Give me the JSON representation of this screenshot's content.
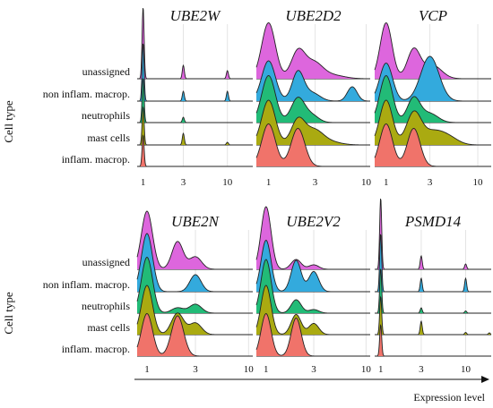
{
  "chart_data": {
    "type": "ridgeline",
    "rows": [
      "unassigned",
      "non inflam. macrop.",
      "neutrophils",
      "mast cells",
      "inflam. macrop."
    ],
    "row_colors": [
      "#dd66dd",
      "#33aadd",
      "#22bb77",
      "#aaaa11",
      "#f0736a"
    ],
    "ylabel": "Cell type",
    "xlabel": "Expression level",
    "panels": [
      {
        "title": "UBE2W",
        "x_ticks": [
          {
            "label": "1",
            "value": 1
          },
          {
            "label": "3",
            "value": 3
          },
          {
            "label": "10",
            "value": 10
          }
        ],
        "x_range": [
          0.85,
          20
        ],
        "series": [
          {
            "row": "unassigned",
            "peaks": [
              {
                "x": 1.0,
                "h": 1.6,
                "w": 0.012
              },
              {
                "x": 3.0,
                "h": 0.3,
                "w": 0.012
              },
              {
                "x": 10.0,
                "h": 0.18,
                "w": 0.012
              }
            ]
          },
          {
            "row": "non inflam. macrop.",
            "peaks": [
              {
                "x": 1.0,
                "h": 1.3,
                "w": 0.012
              },
              {
                "x": 3.0,
                "h": 0.22,
                "w": 0.012
              },
              {
                "x": 10.0,
                "h": 0.22,
                "w": 0.012
              }
            ]
          },
          {
            "row": "neutrophils",
            "peaks": [
              {
                "x": 1.0,
                "h": 1.0,
                "w": 0.012
              },
              {
                "x": 3.0,
                "h": 0.12,
                "w": 0.012
              }
            ]
          },
          {
            "row": "mast cells",
            "peaks": [
              {
                "x": 1.0,
                "h": 0.85,
                "w": 0.012
              },
              {
                "x": 3.0,
                "h": 0.26,
                "w": 0.012
              },
              {
                "x": 10.0,
                "h": 0.06,
                "w": 0.012
              }
            ]
          },
          {
            "row": "inflam. macrop.",
            "peaks": [
              {
                "x": 1.0,
                "h": 0.7,
                "w": 0.012
              }
            ]
          }
        ]
      },
      {
        "title": "UBE2D2",
        "x_ticks": [
          {
            "label": "1",
            "value": 1
          },
          {
            "label": "3",
            "value": 3
          },
          {
            "label": "10",
            "value": 10
          }
        ],
        "x_range": [
          0.75,
          11
        ],
        "series": [
          {
            "row": "unassigned",
            "peaks": [
              {
                "x": 1.0,
                "h": 1.25,
                "w": 0.07
              },
              {
                "x": 2.0,
                "h": 0.6,
                "w": 0.07
              },
              {
                "x": 2.9,
                "h": 0.35,
                "w": 0.09
              },
              {
                "x": 4.5,
                "h": 0.08,
                "w": 0.12
              }
            ]
          },
          {
            "row": "non inflam. macrop.",
            "peaks": [
              {
                "x": 1.0,
                "h": 0.9,
                "w": 0.07
              },
              {
                "x": 2.0,
                "h": 0.65,
                "w": 0.06
              },
              {
                "x": 2.8,
                "h": 0.18,
                "w": 0.08
              },
              {
                "x": 7.2,
                "h": 0.32,
                "w": 0.05
              }
            ]
          },
          {
            "row": "neutrophils",
            "peaks": [
              {
                "x": 1.0,
                "h": 1.05,
                "w": 0.07
              },
              {
                "x": 2.0,
                "h": 0.55,
                "w": 0.07
              },
              {
                "x": 2.8,
                "h": 0.15,
                "w": 0.07
              }
            ]
          },
          {
            "row": "mast cells",
            "peaks": [
              {
                "x": 1.0,
                "h": 1.0,
                "w": 0.07
              },
              {
                "x": 2.0,
                "h": 0.55,
                "w": 0.07
              },
              {
                "x": 2.9,
                "h": 0.3,
                "w": 0.09
              },
              {
                "x": 4.0,
                "h": 0.08,
                "w": 0.12
              }
            ]
          },
          {
            "row": "inflam. macrop.",
            "peaks": [
              {
                "x": 1.0,
                "h": 0.95,
                "w": 0.07
              },
              {
                "x": 2.0,
                "h": 0.85,
                "w": 0.07
              }
            ]
          }
        ]
      },
      {
        "title": "VCP",
        "x_ticks": [
          {
            "label": "1",
            "value": 1
          },
          {
            "label": "3",
            "value": 3
          },
          {
            "label": "10",
            "value": 10
          }
        ],
        "x_range": [
          0.75,
          14
        ],
        "series": [
          {
            "row": "unassigned",
            "peaks": [
              {
                "x": 1.0,
                "h": 1.25,
                "w": 0.065
              },
              {
                "x": 2.0,
                "h": 0.65,
                "w": 0.07
              },
              {
                "x": 3.2,
                "h": 0.3,
                "w": 0.1
              }
            ]
          },
          {
            "row": "non inflam. macrop.",
            "peaks": [
              {
                "x": 1.0,
                "h": 0.85,
                "w": 0.07
              },
              {
                "x": 3.0,
                "h": 1.0,
                "w": 0.1
              }
            ]
          },
          {
            "row": "neutrophils",
            "peaks": [
              {
                "x": 1.0,
                "h": 1.05,
                "w": 0.07
              },
              {
                "x": 2.0,
                "h": 0.55,
                "w": 0.07
              },
              {
                "x": 3.0,
                "h": 0.2,
                "w": 0.09
              }
            ]
          },
          {
            "row": "mast cells",
            "peaks": [
              {
                "x": 1.0,
                "h": 1.0,
                "w": 0.07
              },
              {
                "x": 2.0,
                "h": 0.7,
                "w": 0.08
              },
              {
                "x": 3.3,
                "h": 0.3,
                "w": 0.12
              },
              {
                "x": 5.0,
                "h": 0.12,
                "w": 0.1
              }
            ]
          },
          {
            "row": "inflam. macrop.",
            "peaks": [
              {
                "x": 1.0,
                "h": 0.95,
                "w": 0.07
              },
              {
                "x": 2.0,
                "h": 0.85,
                "w": 0.07
              }
            ]
          }
        ]
      },
      {
        "title": "UBE2N",
        "x_ticks": [
          {
            "label": "1",
            "value": 1
          },
          {
            "label": "3",
            "value": 3
          },
          {
            "label": "10",
            "value": 10
          }
        ],
        "x_range": [
          0.8,
          11
        ],
        "series": [
          {
            "row": "unassigned",
            "peaks": [
              {
                "x": 1.0,
                "h": 1.3,
                "w": 0.055
              },
              {
                "x": 2.0,
                "h": 0.62,
                "w": 0.055
              },
              {
                "x": 3.0,
                "h": 0.28,
                "w": 0.06
              }
            ]
          },
          {
            "row": "non inflam. macrop.",
            "peaks": [
              {
                "x": 1.0,
                "h": 1.3,
                "w": 0.055
              },
              {
                "x": 3.0,
                "h": 0.38,
                "w": 0.055
              }
            ]
          },
          {
            "row": "neutrophils",
            "peaks": [
              {
                "x": 1.0,
                "h": 1.25,
                "w": 0.055
              },
              {
                "x": 2.0,
                "h": 0.12,
                "w": 0.06
              },
              {
                "x": 3.0,
                "h": 0.2,
                "w": 0.06
              }
            ]
          },
          {
            "row": "mast cells",
            "peaks": [
              {
                "x": 1.0,
                "h": 1.1,
                "w": 0.055
              },
              {
                "x": 2.0,
                "h": 0.48,
                "w": 0.06
              },
              {
                "x": 3.0,
                "h": 0.26,
                "w": 0.06
              }
            ]
          },
          {
            "row": "inflam. macrop.",
            "peaks": [
              {
                "x": 1.0,
                "h": 0.95,
                "w": 0.055
              },
              {
                "x": 2.0,
                "h": 0.9,
                "w": 0.06
              }
            ]
          }
        ]
      },
      {
        "title": "UBE2V2",
        "x_ticks": [
          {
            "label": "1",
            "value": 1
          },
          {
            "label": "3",
            "value": 3
          },
          {
            "label": "10",
            "value": 10
          }
        ],
        "x_range": [
          0.8,
          11
        ],
        "series": [
          {
            "row": "unassigned",
            "peaks": [
              {
                "x": 1.0,
                "h": 1.4,
                "w": 0.05
              },
              {
                "x": 2.0,
                "h": 0.22,
                "w": 0.05
              },
              {
                "x": 3.0,
                "h": 0.1,
                "w": 0.05
              }
            ]
          },
          {
            "row": "non inflam. macrop.",
            "peaks": [
              {
                "x": 1.0,
                "h": 1.15,
                "w": 0.05
              },
              {
                "x": 2.0,
                "h": 0.7,
                "w": 0.05
              },
              {
                "x": 3.0,
                "h": 0.45,
                "w": 0.05
              }
            ]
          },
          {
            "row": "neutrophils",
            "peaks": [
              {
                "x": 1.0,
                "h": 1.2,
                "w": 0.05
              },
              {
                "x": 2.0,
                "h": 0.3,
                "w": 0.05
              },
              {
                "x": 3.0,
                "h": 0.08,
                "w": 0.05
              }
            ]
          },
          {
            "row": "mast cells",
            "peaks": [
              {
                "x": 1.0,
                "h": 1.1,
                "w": 0.05
              },
              {
                "x": 2.0,
                "h": 0.45,
                "w": 0.05
              },
              {
                "x": 3.0,
                "h": 0.25,
                "w": 0.05
              }
            ]
          },
          {
            "row": "inflam. macrop.",
            "peaks": [
              {
                "x": 1.0,
                "h": 0.95,
                "w": 0.05
              },
              {
                "x": 2.0,
                "h": 0.85,
                "w": 0.05
              }
            ]
          }
        ]
      },
      {
        "title": "PSMD14",
        "x_ticks": [
          {
            "label": "1",
            "value": 1
          },
          {
            "label": "3",
            "value": 3
          },
          {
            "label": "10",
            "value": 10
          }
        ],
        "x_range": [
          0.85,
          20
        ],
        "series": [
          {
            "row": "unassigned",
            "peaks": [
              {
                "x": 1.0,
                "h": 1.6,
                "w": 0.012
              },
              {
                "x": 3.0,
                "h": 0.3,
                "w": 0.012
              },
              {
                "x": 10.0,
                "h": 0.12,
                "w": 0.012
              }
            ]
          },
          {
            "row": "non inflam. macrop.",
            "peaks": [
              {
                "x": 1.0,
                "h": 1.3,
                "w": 0.012
              },
              {
                "x": 3.0,
                "h": 0.3,
                "w": 0.012
              },
              {
                "x": 10.0,
                "h": 0.3,
                "w": 0.012
              }
            ]
          },
          {
            "row": "neutrophils",
            "peaks": [
              {
                "x": 1.0,
                "h": 1.0,
                "w": 0.012
              },
              {
                "x": 3.0,
                "h": 0.12,
                "w": 0.012
              },
              {
                "x": 10.0,
                "h": 0.05,
                "w": 0.012
              }
            ]
          },
          {
            "row": "mast cells",
            "peaks": [
              {
                "x": 1.0,
                "h": 0.85,
                "w": 0.012
              },
              {
                "x": 3.0,
                "h": 0.3,
                "w": 0.012
              },
              {
                "x": 10.0,
                "h": 0.05,
                "w": 0.012
              },
              {
                "x": 19.0,
                "h": 0.04,
                "w": 0.012
              }
            ]
          },
          {
            "row": "inflam. macrop.",
            "peaks": [
              {
                "x": 1.0,
                "h": 0.7,
                "w": 0.012
              }
            ]
          }
        ]
      }
    ]
  }
}
